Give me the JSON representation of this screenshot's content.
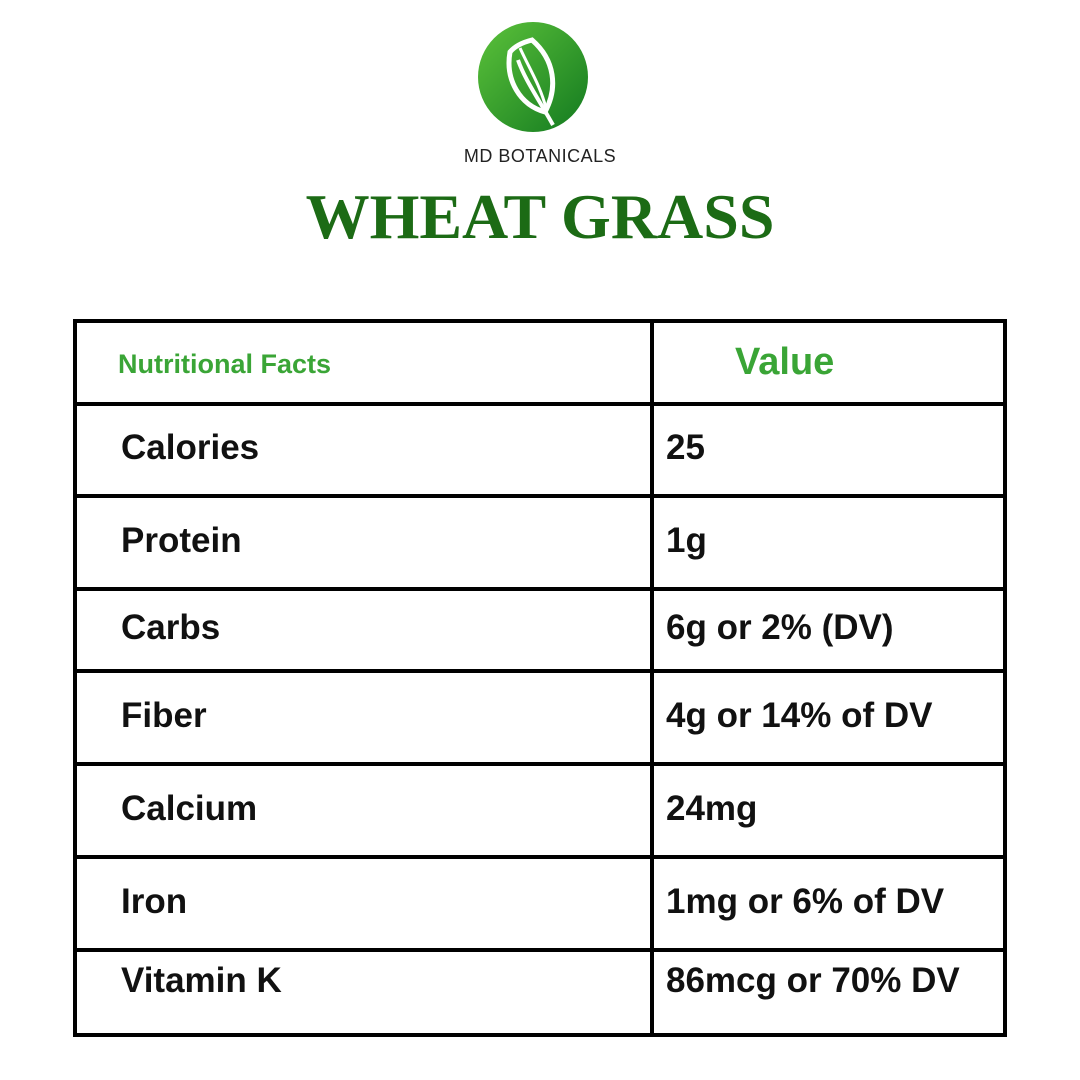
{
  "header": {
    "brand": "MD BOTANICALS",
    "title": "WHEAT GRASS"
  },
  "table": {
    "columns": [
      "Nutritional Facts",
      "Value"
    ],
    "rows": [
      [
        "Calories",
        "25"
      ],
      [
        "Protein",
        "1g"
      ],
      [
        "Carbs",
        "6g or 2% (DV)"
      ],
      [
        "Fiber",
        "4g or 14% of DV"
      ],
      [
        "Calcium",
        "24mg"
      ],
      [
        "Iron",
        "1mg or 6% of DV"
      ],
      [
        "Vitamin K",
        "86mcg or 70% DV"
      ]
    ]
  }
}
